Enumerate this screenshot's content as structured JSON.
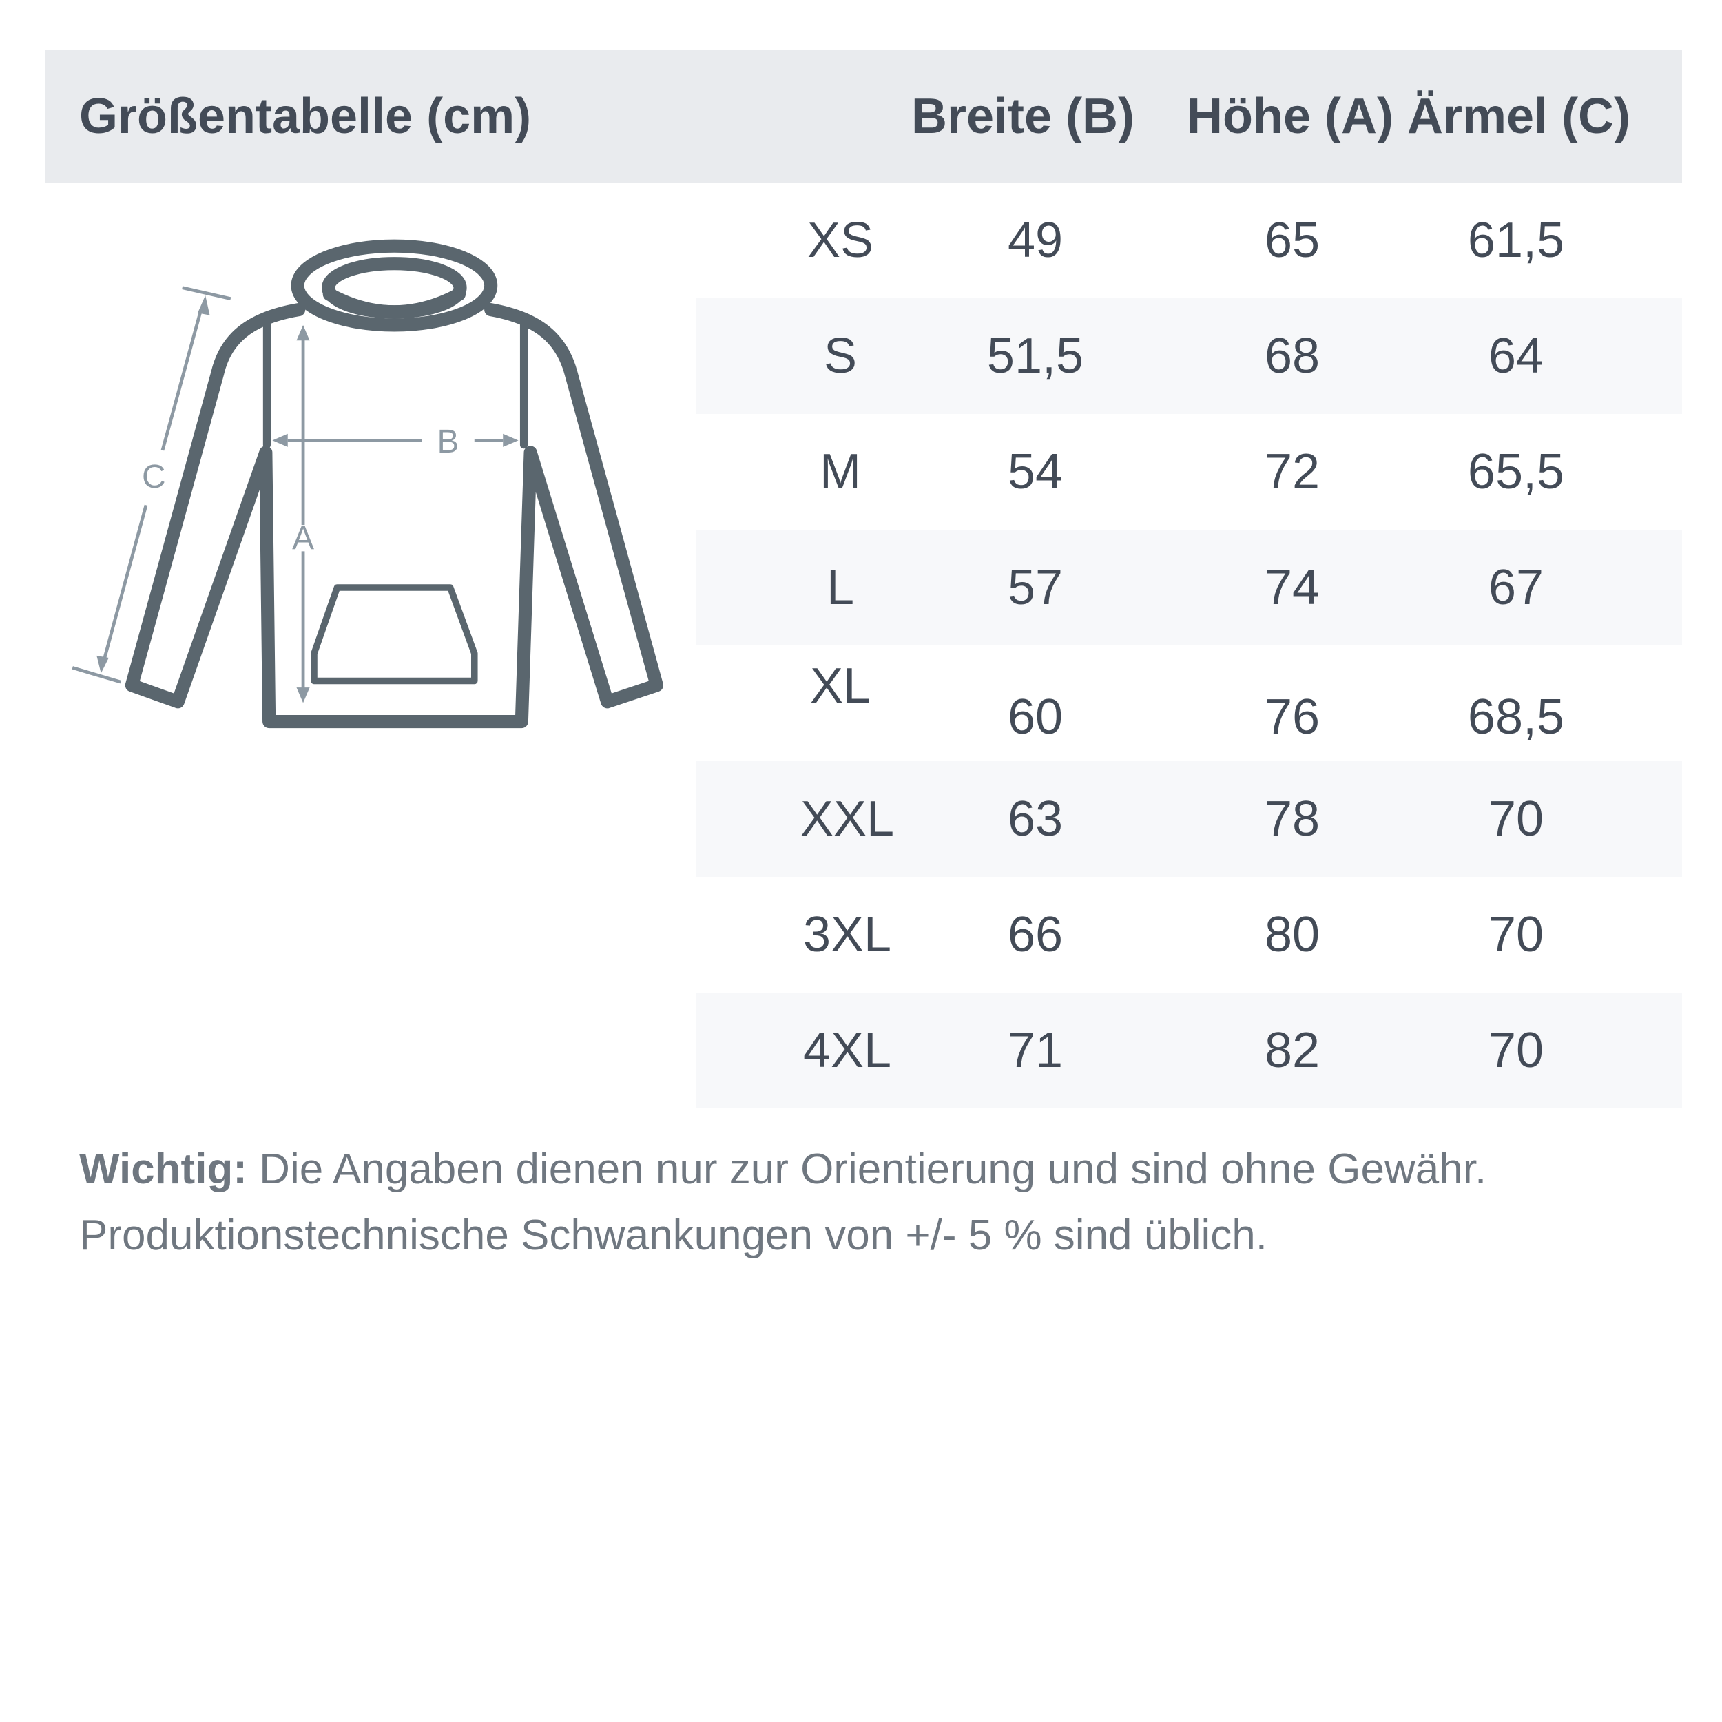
{
  "header": {
    "title": "Größentabelle (cm)",
    "columns": [
      "Breite (B)",
      "Höhe (A)",
      "Ärmel (C)"
    ]
  },
  "diagram": {
    "labels": {
      "a": "A",
      "b": "B",
      "c": "C"
    }
  },
  "rows": [
    {
      "size": "XS",
      "breite": "49",
      "hoehe": "65",
      "aermel": "61,5"
    },
    {
      "size": "S",
      "breite": "51,5",
      "hoehe": "68",
      "aermel": "64"
    },
    {
      "size": "M",
      "breite": "54",
      "hoehe": "72",
      "aermel": "65,5"
    },
    {
      "size": "L",
      "breite": "57",
      "hoehe": "74",
      "aermel": "67"
    },
    {
      "size": "XL",
      "breite": "60",
      "hoehe": "76",
      "aermel": "68,5"
    },
    {
      "size": "XXL",
      "breite": "63",
      "hoehe": "78",
      "aermel": "70"
    },
    {
      "size": "3XL",
      "breite": "66",
      "hoehe": "80",
      "aermel": "70"
    },
    {
      "size": "4XL",
      "breite": "71",
      "hoehe": "82",
      "aermel": "70"
    }
  ],
  "note": {
    "label": "Wichtig:",
    "line1": " Die Angaben dienen nur zur Orientierung und sind ohne Gewähr.",
    "line2": "Produktionstechnische Schwankungen von +/- 5 % sind üblich."
  },
  "colors": {
    "header_bg": "#e9ebee",
    "text": "#434b57",
    "stripe": "#f7f8fa",
    "garment": "#5a666e",
    "measure": "#8d99a3"
  }
}
